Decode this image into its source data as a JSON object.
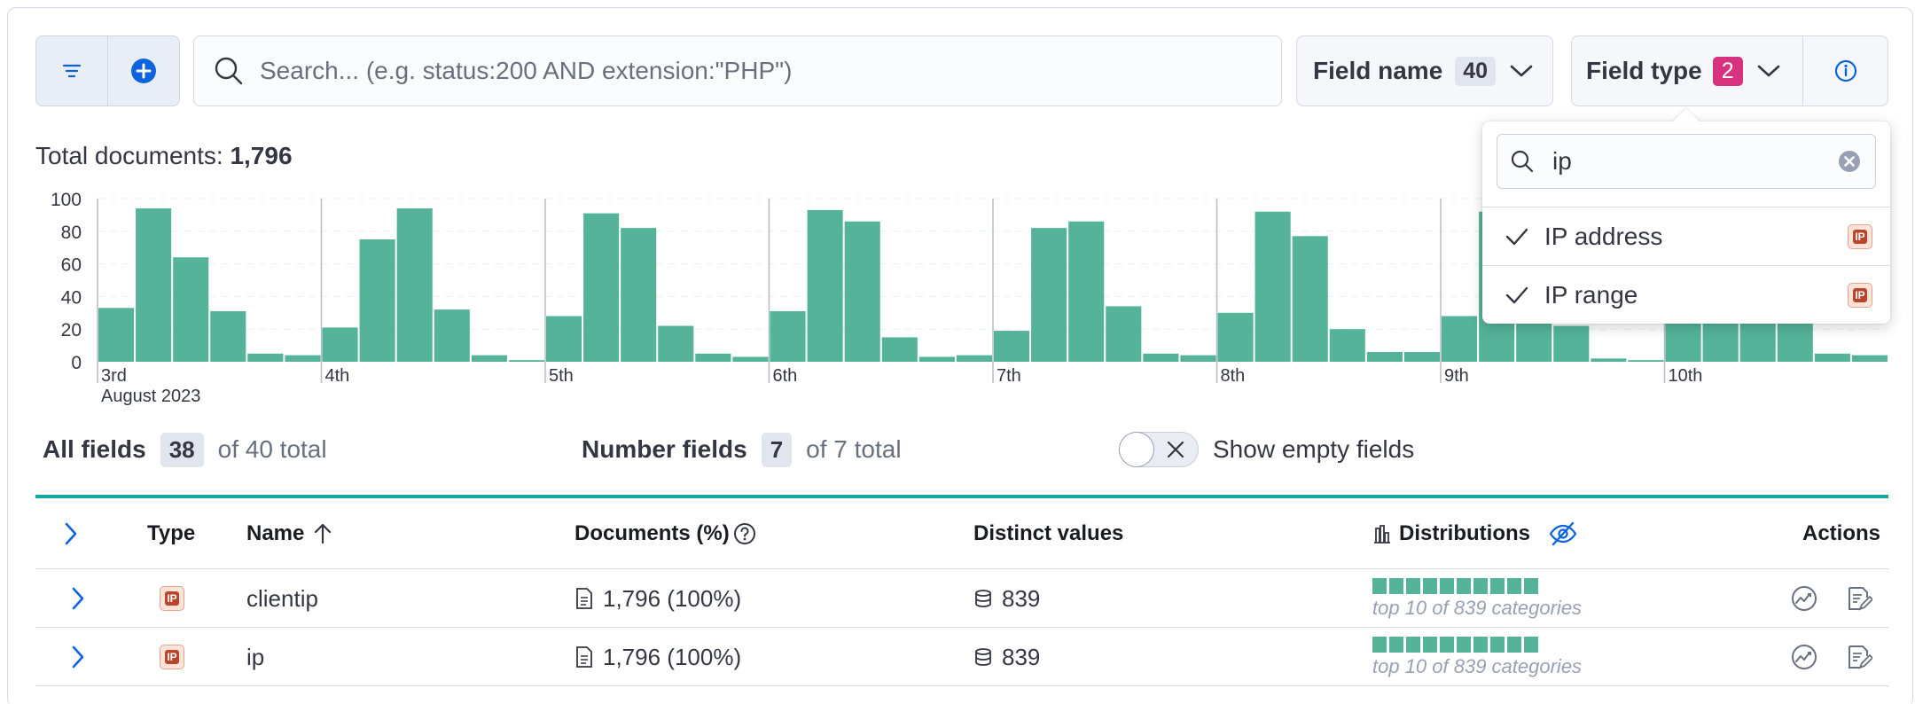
{
  "toolbar": {
    "search_placeholder": "Search... (e.g. status:200 AND extension:\"PHP\")",
    "field_name": {
      "label": "Field name",
      "count": "40"
    },
    "field_type": {
      "label": "Field type",
      "count": "2"
    }
  },
  "popover": {
    "search_value": "ip",
    "options": [
      {
        "label": "IP address",
        "checked": true,
        "icon": "ip-icon"
      },
      {
        "label": "IP range",
        "checked": true,
        "icon": "ip-icon"
      }
    ]
  },
  "total_documents": {
    "label": "Total documents:",
    "value": "1,796"
  },
  "chart_data": {
    "type": "bar",
    "color": "#54b399",
    "ylim": [
      0,
      100
    ],
    "yticks": [
      "100",
      "80",
      "60",
      "40",
      "20",
      "0"
    ],
    "day_labels": [
      "3rd",
      "4th",
      "5th",
      "6th",
      "7th",
      "8th",
      "9th",
      "10th"
    ],
    "month_label": "August 2023",
    "values": [
      33,
      94,
      64,
      31,
      5,
      4,
      21,
      75,
      94,
      32,
      4,
      1,
      28,
      91,
      82,
      22,
      5,
      3,
      31,
      93,
      86,
      15,
      3,
      4,
      19,
      82,
      86,
      34,
      5,
      4,
      30,
      92,
      77,
      20,
      6,
      6,
      28,
      92,
      85,
      22,
      2,
      1,
      33,
      94,
      60,
      30,
      5,
      4
    ]
  },
  "summary": {
    "all_fields": {
      "label": "All fields",
      "count": "38",
      "of": "of 40 total"
    },
    "number_fields": {
      "label": "Number fields",
      "count": "7",
      "of": "of 7 total"
    },
    "show_empty": "Show empty fields"
  },
  "table": {
    "headers": {
      "type": "Type",
      "name": "Name",
      "documents": "Documents (%)",
      "distinct": "Distinct values",
      "distributions": "Distributions",
      "actions": "Actions"
    },
    "rows": [
      {
        "type_icon": "ip-icon",
        "name": "clientip",
        "documents": "1,796 (100%)",
        "distinct": "839",
        "distribution": "top 10 of 839 categories"
      },
      {
        "type_icon": "ip-icon",
        "name": "ip",
        "documents": "1,796 (100%)",
        "distinct": "839",
        "distribution": "top 10 of 839 categories"
      }
    ]
  }
}
